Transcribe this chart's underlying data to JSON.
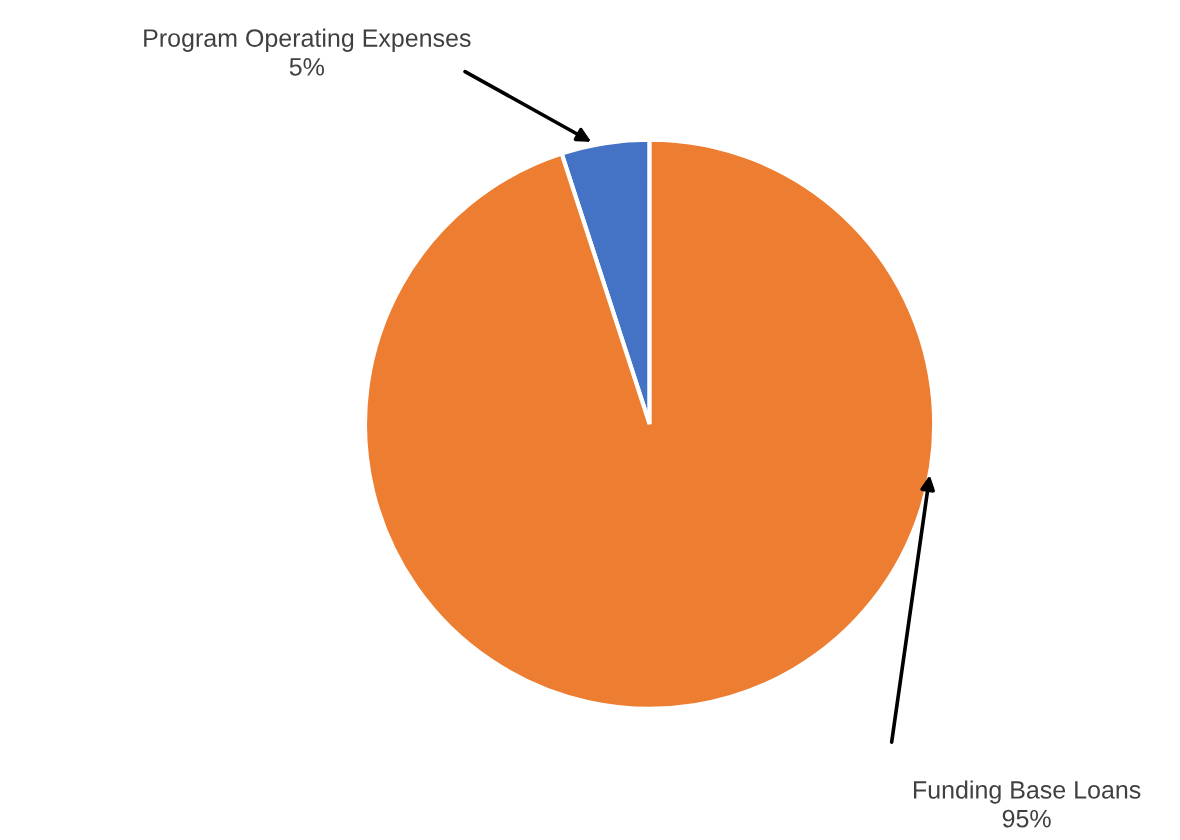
{
  "chart_data": {
    "type": "pie",
    "categories": [
      "Program Operating Expenses",
      "Funding Base Loans"
    ],
    "values": [
      5,
      95
    ],
    "value_labels": [
      "5%",
      "95%"
    ],
    "colors": [
      "#4472c4",
      "#ed7d31"
    ]
  }
}
